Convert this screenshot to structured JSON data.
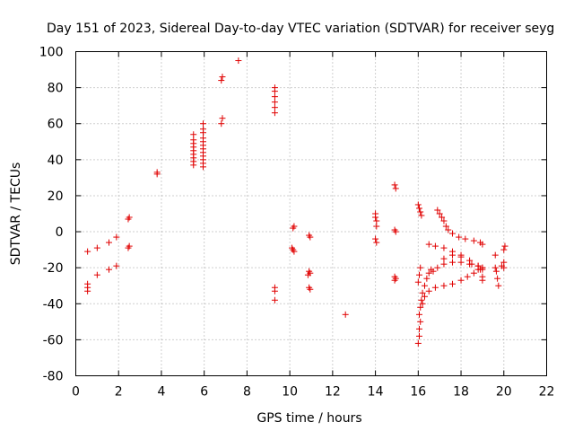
{
  "chart_data": {
    "type": "scatter",
    "title": "Day 151 of 2023, Sidereal Day-to-day VTEC variation (SDTVAR) for receiver seyg",
    "xlabel": "GPS time / hours",
    "ylabel": "SDTVAR / TECUs",
    "xlim": [
      0,
      22
    ],
    "ylim": [
      -80,
      100
    ],
    "xticks": [
      0,
      2,
      4,
      6,
      8,
      10,
      12,
      14,
      16,
      18,
      20,
      22
    ],
    "yticks": [
      -80,
      -60,
      -40,
      -20,
      0,
      20,
      40,
      60,
      80,
      100
    ],
    "grid": true,
    "marker": "+",
    "color": "#e00000",
    "series": [
      {
        "name": "SDTVAR",
        "points": [
          [
            0.55,
            -11
          ],
          [
            0.55,
            -29
          ],
          [
            0.55,
            -31
          ],
          [
            0.55,
            -33
          ],
          [
            1.0,
            -9
          ],
          [
            1.0,
            -24
          ],
          [
            1.55,
            -6
          ],
          [
            1.55,
            -21
          ],
          [
            1.9,
            -3
          ],
          [
            1.9,
            -19
          ],
          [
            2.45,
            7
          ],
          [
            2.5,
            8
          ],
          [
            2.45,
            -9
          ],
          [
            2.5,
            -8
          ],
          [
            3.8,
            32
          ],
          [
            3.8,
            33
          ],
          [
            5.5,
            37
          ],
          [
            5.5,
            39
          ],
          [
            5.5,
            41
          ],
          [
            5.5,
            43
          ],
          [
            5.5,
            45
          ],
          [
            5.5,
            47
          ],
          [
            5.5,
            49
          ],
          [
            5.5,
            51
          ],
          [
            5.5,
            54
          ],
          [
            5.95,
            36
          ],
          [
            5.95,
            38
          ],
          [
            5.95,
            40
          ],
          [
            5.95,
            42
          ],
          [
            5.95,
            44
          ],
          [
            5.95,
            46
          ],
          [
            5.95,
            48
          ],
          [
            5.95,
            50
          ],
          [
            5.95,
            52
          ],
          [
            5.95,
            55
          ],
          [
            5.95,
            57
          ],
          [
            5.95,
            60
          ],
          [
            6.8,
            60
          ],
          [
            6.85,
            63
          ],
          [
            6.8,
            84
          ],
          [
            6.85,
            86
          ],
          [
            7.6,
            95
          ],
          [
            9.3,
            66
          ],
          [
            9.3,
            69
          ],
          [
            9.3,
            72
          ],
          [
            9.3,
            75
          ],
          [
            9.3,
            78
          ],
          [
            9.3,
            80
          ],
          [
            9.3,
            -31
          ],
          [
            9.3,
            -33
          ],
          [
            9.3,
            -38
          ],
          [
            10.15,
            2
          ],
          [
            10.2,
            3
          ],
          [
            10.1,
            -9
          ],
          [
            10.15,
            -10
          ],
          [
            10.2,
            -11
          ],
          [
            10.9,
            -2
          ],
          [
            10.95,
            -3
          ],
          [
            10.9,
            -22
          ],
          [
            10.95,
            -23
          ],
          [
            10.85,
            -24
          ],
          [
            10.9,
            -31
          ],
          [
            10.95,
            -32
          ],
          [
            12.6,
            -46
          ],
          [
            14.0,
            10
          ],
          [
            14.0,
            8
          ],
          [
            14.05,
            6
          ],
          [
            14.05,
            3
          ],
          [
            14.0,
            -4
          ],
          [
            14.05,
            -6
          ],
          [
            14.9,
            26
          ],
          [
            14.95,
            24
          ],
          [
            14.9,
            1
          ],
          [
            14.95,
            0
          ],
          [
            14.9,
            -25
          ],
          [
            14.95,
            -26
          ],
          [
            14.9,
            -27
          ],
          [
            16.0,
            -62
          ],
          [
            16.05,
            -58
          ],
          [
            16.05,
            -54
          ],
          [
            16.1,
            -50
          ],
          [
            16.05,
            -46
          ],
          [
            16.1,
            -42
          ],
          [
            16.15,
            -38
          ],
          [
            16.2,
            -34
          ],
          [
            16.3,
            -30
          ],
          [
            16.4,
            -26
          ],
          [
            16.5,
            -23
          ],
          [
            16.6,
            -21
          ],
          [
            16.0,
            -28
          ],
          [
            16.05,
            -24
          ],
          [
            16.1,
            -20
          ],
          [
            16.0,
            15
          ],
          [
            16.05,
            13
          ],
          [
            16.1,
            11
          ],
          [
            16.15,
            9
          ],
          [
            16.2,
            -40
          ],
          [
            16.3,
            -36
          ],
          [
            16.5,
            -33
          ],
          [
            16.8,
            -31
          ],
          [
            17.2,
            -30
          ],
          [
            17.6,
            -29
          ],
          [
            18.0,
            -27
          ],
          [
            18.3,
            -25
          ],
          [
            18.6,
            -23
          ],
          [
            18.9,
            -21
          ],
          [
            19.0,
            -20
          ],
          [
            16.5,
            -7
          ],
          [
            16.8,
            -8
          ],
          [
            17.2,
            -9
          ],
          [
            17.6,
            -11
          ],
          [
            18.0,
            -13
          ],
          [
            18.4,
            -16
          ],
          [
            18.8,
            -19
          ],
          [
            19.0,
            -21
          ],
          [
            16.7,
            -22
          ],
          [
            16.9,
            -20
          ],
          [
            17.2,
            -18
          ],
          [
            17.6,
            -17
          ],
          [
            18.0,
            -17
          ],
          [
            18.4,
            -18
          ],
          [
            18.8,
            -19
          ],
          [
            19.0,
            -20
          ],
          [
            16.9,
            12
          ],
          [
            17.0,
            10
          ],
          [
            17.1,
            8
          ],
          [
            17.2,
            6
          ],
          [
            17.3,
            3
          ],
          [
            17.4,
            1
          ],
          [
            17.6,
            -1
          ],
          [
            17.9,
            -3
          ],
          [
            18.2,
            -4
          ],
          [
            18.6,
            -5
          ],
          [
            18.9,
            -6
          ],
          [
            19.0,
            -7
          ],
          [
            17.2,
            -15
          ],
          [
            17.6,
            -13
          ],
          [
            18.0,
            -14
          ],
          [
            18.5,
            -18
          ],
          [
            18.8,
            -21
          ],
          [
            19.0,
            -25
          ],
          [
            19.0,
            -27
          ],
          [
            19.6,
            -13
          ],
          [
            19.6,
            -20
          ],
          [
            19.65,
            -22
          ],
          [
            19.7,
            -26
          ],
          [
            19.75,
            -30
          ],
          [
            19.9,
            -19
          ],
          [
            20.0,
            -20
          ],
          [
            20.0,
            -17
          ],
          [
            20.0,
            -10
          ],
          [
            20.05,
            -8
          ]
        ]
      }
    ]
  }
}
